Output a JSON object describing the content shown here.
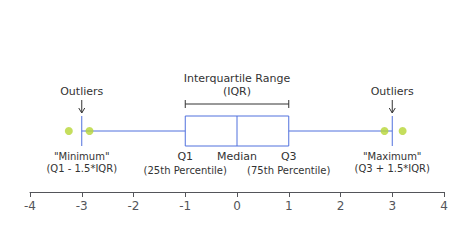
{
  "chart_data": {
    "type": "boxplot",
    "orientation": "horizontal",
    "values": [
      -3,
      -1,
      0,
      1,
      3
    ],
    "outliers": [
      -3.25,
      -2.85,
      2.85,
      3.2
    ],
    "xlim": [
      -4,
      4
    ],
    "xticks": [
      -4,
      -3,
      -2,
      -1,
      0,
      1,
      2,
      3,
      4
    ],
    "grid": false,
    "tick_labels": "x",
    "annotations": {
      "iqr": "Interquartile Range\n(IQR)",
      "q1": "Q1",
      "median": "Median",
      "q3": "Q3",
      "q1_sub": "(25th Percentile)",
      "q3_sub": "(75th Percentile)",
      "outliers_left": "Outliers",
      "outliers_right": "Outliers",
      "min": "\"Minimum\"\n(Q1 - 1.5*IQR)",
      "max": "\"Maximum\"\n(Q3 + 1.5*IQR)"
    }
  }
}
